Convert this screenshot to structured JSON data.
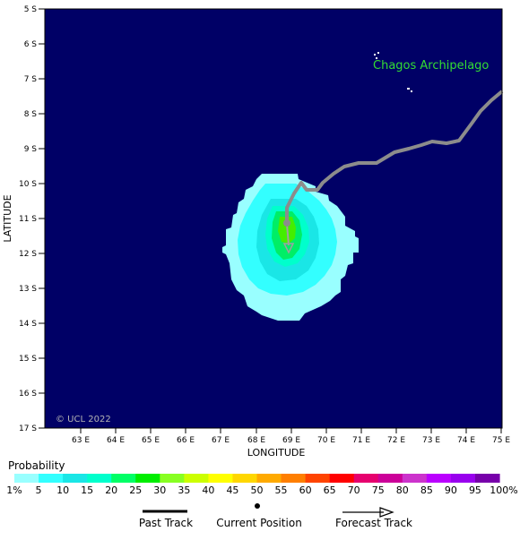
{
  "map": {
    "label_region": "Chagos Archipelago",
    "copyright": "© UCL 2022",
    "x_axis_title": "LONGITUDE",
    "y_axis_title": "LATITUDE",
    "lat_ticks": [
      "5 S",
      "6 S",
      "7 S",
      "8 S",
      "9 S",
      "10 S",
      "11 S",
      "12 S",
      "13 S",
      "14 S",
      "15 S",
      "16 S",
      "17 S"
    ],
    "lon_ticks": [
      "63 E",
      "64 E",
      "65 E",
      "66 E",
      "67 E",
      "68 E",
      "69 E",
      "70 E",
      "71 E",
      "72 E",
      "73 E",
      "74 E",
      "75 E"
    ],
    "ocean_color": "#000066",
    "track_color": "#8c8c8c"
  },
  "probability_legend": {
    "title": "Probability",
    "labels": [
      "1%",
      "5",
      "10",
      "15",
      "20",
      "25",
      "30",
      "35",
      "40",
      "45",
      "50",
      "55",
      "60",
      "65",
      "70",
      "75",
      "80",
      "85",
      "90",
      "95",
      "100%"
    ],
    "colors": [
      "#99ffff",
      "#33ffff",
      "#1ae6e6",
      "#00ffcc",
      "#00ff66",
      "#00ee00",
      "#88ff22",
      "#ccff00",
      "#ffff00",
      "#ffd700",
      "#ffaa00",
      "#ff7f00",
      "#ff4400",
      "#ff0000",
      "#e6006e",
      "#cc0099",
      "#cc33cc",
      "#bb00ff",
      "#9900ee",
      "#7700aa"
    ]
  },
  "track_legend": {
    "past": "Past Track",
    "current": "Current Position",
    "forecast": "Forecast Track"
  }
}
